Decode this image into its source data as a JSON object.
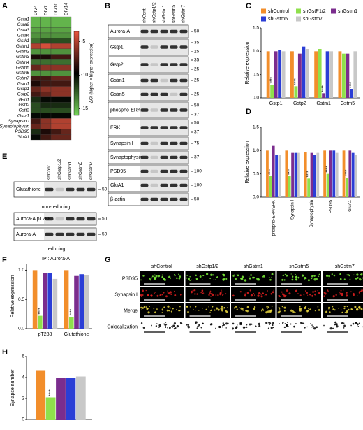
{
  "panels": [
    {
      "label": "A",
      "type": "heatmap",
      "rows": [
        "Gsta1",
        "Gsta2",
        "Gsta3",
        "Gsta4",
        "Gstk1",
        "Gstm1",
        "Gstm2",
        "Gstm3",
        "Gstm4",
        "Gstm5",
        "Gstm6",
        "Gstm7",
        "Gsto1",
        "Gstp1",
        "Gstp2",
        "Gstt1",
        "Gstt2",
        "Gstt3",
        "Gstz1",
        "Synapsin I",
        "Synaptophysin",
        "PSD95",
        "GluA1"
      ],
      "columns": [
        "DIV4",
        "DIV7",
        "DIV10",
        "DIV14"
      ],
      "values": [
        [
          -15,
          -15,
          -15,
          -15
        ],
        [
          -15,
          -15,
          -15,
          -15
        ],
        [
          -14.5,
          -14.5,
          -14.5,
          -14.5
        ],
        [
          -14,
          -14,
          -14,
          -14
        ],
        [
          -13,
          -12,
          -12,
          -12
        ],
        [
          -5,
          -4,
          -5,
          -5
        ],
        [
          -14,
          -14,
          -14,
          -14
        ],
        [
          -9,
          -9,
          -8,
          -8
        ],
        [
          -13,
          -13,
          -13,
          -13
        ],
        [
          -7,
          -6,
          -6,
          -6
        ],
        [
          -14,
          -14,
          -14,
          -14
        ],
        [
          -8,
          -8,
          -7,
          -7
        ],
        [
          -9,
          -8,
          -8,
          -8
        ],
        [
          -7,
          -6,
          -6,
          -6
        ],
        [
          -8,
          -7,
          -6,
          -6
        ],
        [
          -11,
          -10,
          -10,
          -10
        ],
        [
          -12,
          -11,
          -11,
          -11
        ],
        [
          -12,
          -12,
          -12,
          -12
        ],
        [
          -10,
          -10,
          -10,
          -10
        ],
        [
          -8,
          -6,
          -5,
          -5
        ],
        [
          -7,
          -6,
          -5,
          -5
        ],
        [
          -11,
          -9,
          -8,
          -7
        ],
        [
          -10,
          -8,
          -7,
          -7
        ]
      ],
      "colorbar": {
        "label": "-ΔCt (higher = higher expression)",
        "lim": [
          -16,
          -3.5
        ],
        "ticks": [
          -5,
          -10,
          -15
        ]
      }
    },
    {
      "label": "B",
      "type": "blot",
      "lanes": [
        "shCont",
        "shGstp1/2",
        "shGstm1",
        "shGstm5",
        "shGstm7"
      ],
      "rows": [
        {
          "name": "Aurora-A",
          "markers": [
            50
          ]
        },
        {
          "name": "Gstp1",
          "markers": [
            35,
            25
          ]
        },
        {
          "name": "Gstp2",
          "markers": [
            35,
            25
          ]
        },
        {
          "name": "Gstm1",
          "markers": [
            25
          ]
        },
        {
          "name": "Gstm5",
          "markers": [
            25
          ]
        },
        {
          "name": "phospho-ERK",
          "markers": [
            50,
            37
          ]
        },
        {
          "name": "ERK",
          "markers": [
            50,
            37
          ]
        },
        {
          "name": "Synapsin I",
          "markers": [
            75
          ]
        },
        {
          "name": "Synaptophysin",
          "markers": [
            37
          ]
        },
        {
          "name": "PSD95",
          "markers": [
            100
          ]
        },
        {
          "name": "GluA1",
          "markers": [
            100
          ]
        },
        {
          "name": "β-actin",
          "markers": [
            50
          ]
        }
      ]
    },
    {
      "label": "C",
      "type": "bar",
      "ylabel": "Relative expression",
      "categories": [
        "Gstp1",
        "Gstp2",
        "Gstm1",
        "Gstm5"
      ],
      "ylim": [
        0,
        1.5
      ],
      "yticks": [
        {
          "value": 0,
          "label": "0.0"
        },
        {
          "value": 0.5,
          "label": "0.5"
        },
        {
          "value": 1,
          "label": "1.0"
        },
        {
          "value": 1.5,
          "label": "1.5"
        }
      ],
      "series": [
        {
          "name": "shControl",
          "color": "#f28e2b",
          "values": [
            1.0,
            1.0,
            1.0,
            1.0
          ]
        },
        {
          "name": "shGstP1/2",
          "color": "#8fe04c",
          "values": [
            0.28,
            0.25,
            1.05,
            0.95
          ],
          "significance": [
            "****",
            "****",
            null,
            null
          ]
        },
        {
          "name": "shGstm1",
          "color": "#7b2d8e",
          "values": [
            1.0,
            0.95,
            0.1,
            0.95
          ],
          "significance": [
            null,
            null,
            "****",
            null
          ]
        },
        {
          "name": "shGstm5",
          "color": "#2b3ed6",
          "values": [
            1.03,
            1.1,
            1.0,
            0.18
          ],
          "significance": [
            null,
            null,
            null,
            "****"
          ]
        },
        {
          "name": "shGstm7",
          "color": "#c8c8c8",
          "values": [
            1.0,
            1.05,
            1.0,
            1.0
          ]
        }
      ]
    },
    {
      "label": "D",
      "type": "bar",
      "ylabel": "Relative expression",
      "categories": [
        "phospho-ERK/ERK",
        "Synapsin I",
        "Synaptophysin",
        "PSD95",
        "GluA1"
      ],
      "ylim": [
        0,
        1.5
      ],
      "yticks": [
        {
          "value": 0,
          "label": "0.0"
        },
        {
          "value": 0.5,
          "label": "0.5"
        },
        {
          "value": 1,
          "label": "1.0"
        },
        {
          "value": 1.5,
          "label": "1.5"
        }
      ],
      "series": [
        {
          "color": "#f28e2b",
          "values": [
            1.0,
            1.0,
            0.97,
            1.0,
            1.0
          ]
        },
        {
          "color": "#8fe04c",
          "values": [
            0.45,
            0.45,
            0.4,
            0.5,
            0.42
          ],
          "significance": [
            "****",
            "****",
            "****",
            "****",
            "****"
          ]
        },
        {
          "color": "#7b2d8e",
          "values": [
            1.1,
            0.95,
            0.95,
            1.0,
            1.0
          ]
        },
        {
          "color": "#2b3ed6",
          "values": [
            0.9,
            0.95,
            0.9,
            1.0,
            0.95
          ]
        },
        {
          "color": "#c8c8c8",
          "values": [
            0.9,
            0.95,
            0.95,
            0.95,
            0.9
          ]
        }
      ]
    },
    {
      "label": "E",
      "type": "blot",
      "lanes": [
        "shCont",
        "shGstp1/2",
        "shGstm1",
        "shGstm5",
        "shGstm7"
      ],
      "rows": [
        {
          "name": "Glutathione",
          "markers": [
            50
          ]
        },
        {
          "name": "Aurora-A pT288",
          "markers": [
            50
          ]
        },
        {
          "name": "Aurora-A",
          "markers": [
            50
          ]
        }
      ],
      "notes": [
        "non-reducing",
        "reducing",
        "IP : Aurora-A"
      ]
    },
    {
      "label": "F",
      "type": "bar",
      "ylabel": "Relative expression",
      "categories": [
        "pT288",
        "Glutathione"
      ],
      "ylim": [
        0,
        1.1
      ],
      "yticks": [
        {
          "value": 0,
          "label": "0.0"
        },
        {
          "value": 0.5,
          "label": "0.5"
        },
        {
          "value": 1,
          "label": "1.0"
        }
      ],
      "series": [
        {
          "color": "#f28e2b",
          "values": [
            1.0,
            1.0
          ]
        },
        {
          "color": "#8fe04c",
          "values": [
            0.22,
            0.2
          ],
          "significance": [
            "****",
            "****"
          ]
        },
        {
          "color": "#7b2d8e",
          "values": [
            0.95,
            0.9
          ]
        },
        {
          "color": "#2b3ed6",
          "values": [
            0.95,
            0.93
          ]
        },
        {
          "color": "#c8c8c8",
          "values": [
            0.85,
            0.92
          ]
        }
      ]
    },
    {
      "label": "G",
      "type": "images",
      "columns": [
        "shControl",
        "shGstp1/2",
        "shGstm1",
        "shGstm5",
        "shGstm7"
      ],
      "rows": [
        "PSD95",
        "Synapsin I",
        "Merge",
        "Colocalization"
      ]
    },
    {
      "label": "H",
      "type": "bar",
      "ylabel": "Synapse number",
      "categories": [
        null
      ],
      "ylim": [
        0,
        6
      ],
      "yticks": [
        0,
        2,
        4,
        6
      ],
      "series": [
        {
          "color": "#f28e2b",
          "values": [
            4.7
          ]
        },
        {
          "color": "#8fe04c",
          "values": [
            2.1
          ],
          "significance": [
            "****"
          ]
        },
        {
          "color": "#7b2d8e",
          "values": [
            4.0
          ]
        },
        {
          "color": "#2b3ed6",
          "values": [
            4.0
          ]
        },
        {
          "color": "#c8c8c8",
          "values": [
            4.1
          ]
        }
      ]
    }
  ]
}
